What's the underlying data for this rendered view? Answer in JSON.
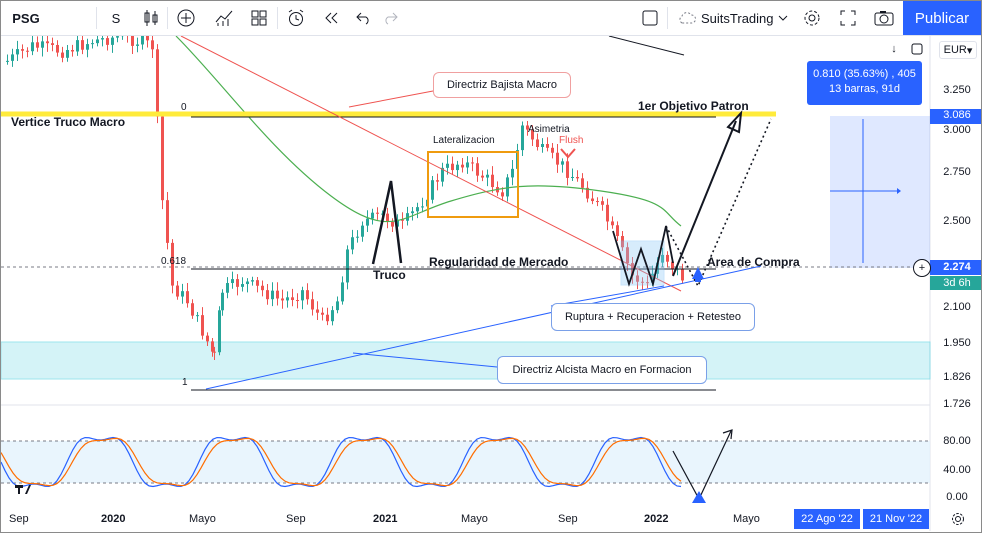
{
  "toolbar": {
    "symbol": "PSG",
    "interval": "S",
    "layout_name": "SuitsTrading",
    "publish_label": "Publicar",
    "icons": [
      "candle-style-icon",
      "add-indicator-icon",
      "indicators-icon",
      "templates-icon",
      "alert-icon",
      "replay-icon",
      "undo-icon",
      "redo-icon",
      "fullscreen-square-icon",
      "cloud-icon",
      "chevron-down-icon",
      "settings-icon",
      "expand-icon",
      "camera-icon"
    ]
  },
  "chart": {
    "currency": "EUR",
    "price_labels": [
      "3.250",
      "3.000",
      "2.750",
      "2.500",
      "2.100",
      "1.950",
      "1.826",
      "1.726"
    ],
    "highlight_prices": {
      "target": "3.086",
      "last": "2.274",
      "countdown": "3d 6h"
    },
    "oscillator_labels": [
      "80.00",
      "40.00",
      "0.00"
    ],
    "time_labels": [
      "Sep",
      "2020",
      "Mayo",
      "Sep",
      "2021",
      "Mayo",
      "Sep",
      "2022",
      "Mayo"
    ],
    "date_range": [
      "22 Ago '22",
      "21 Nov '22"
    ],
    "measure": {
      "line1": "0.810 (35.63%) , 405",
      "line2": "13 barras, 91d"
    },
    "fib_labels": {
      "zero": "0",
      "mid": "0.618",
      "one": "1"
    },
    "colors": {
      "accent": "#2962ff",
      "yellow": "#ffeb3b",
      "up": "#26a69a",
      "down": "#ef5350",
      "zone": "#b2ebf2"
    }
  },
  "annotations": {
    "bearish_macro": "Directriz Bajista Macro",
    "vertex": "Vertice Truco Macro",
    "first_target": "1er Objetivo Patron",
    "sideways": "Lateralizacion",
    "asymmetry": "Asimetria",
    "flush": "Flush",
    "market_regularity": "Regularidad de Mercado",
    "trick": "Truco",
    "buy_area": "Area de Compra",
    "breakout": "Ruptura + Recuperacion + Retesteo",
    "bullish_macro": "Directriz Alcista Macro en Formacion"
  }
}
